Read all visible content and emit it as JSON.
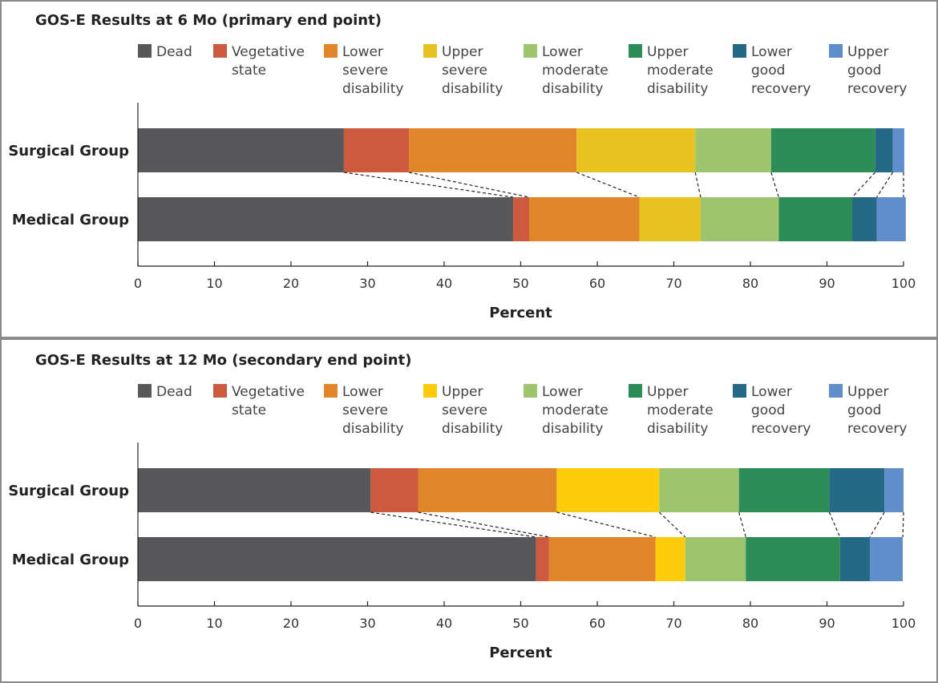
{
  "chart_data": [
    {
      "type": "bar",
      "orientation": "horizontal",
      "stacked": true,
      "title": "GOS-E Results at 6 Mo (primary end point)",
      "xlabel": "Percent",
      "xlim": [
        0,
        100
      ],
      "xticks": [
        "0",
        "10",
        "20",
        "30",
        "40",
        "50",
        "60",
        "70",
        "80",
        "90",
        "100"
      ],
      "categories": [
        "Surgical Group",
        "Medical Group"
      ],
      "legend_placement": "top",
      "series": [
        {
          "name": [
            "Dead"
          ],
          "color": "#58585a",
          "values": [
            26.9,
            49.0
          ]
        },
        {
          "name": [
            "Vegetative",
            "state"
          ],
          "color": "#cb5a3e",
          "values": [
            8.5,
            2.1
          ]
        },
        {
          "name": [
            "Lower",
            "severe",
            "disability"
          ],
          "color": "#e0862a",
          "values": [
            21.9,
            14.4
          ]
        },
        {
          "name": [
            "Upper",
            "severe",
            "disability"
          ],
          "color": "#e8c21e",
          "values": [
            15.5,
            8.0
          ]
        },
        {
          "name": [
            "Lower",
            "moderate",
            "disability"
          ],
          "color": "#9cc56d",
          "values": [
            9.9,
            10.2
          ]
        },
        {
          "name": [
            "Upper",
            "moderate",
            "disability"
          ],
          "color": "#2e8c56",
          "values": [
            13.6,
            9.6
          ]
        },
        {
          "name": [
            "Lower",
            "good",
            "recovery"
          ],
          "color": "#246a86",
          "values": [
            2.3,
            3.2
          ]
        },
        {
          "name": [
            "Upper",
            "good",
            "recovery"
          ],
          "color": "#5f8ecb",
          "values": [
            1.5,
            3.8
          ]
        }
      ]
    },
    {
      "type": "bar",
      "orientation": "horizontal",
      "stacked": true,
      "title": "GOS-E Results at 12 Mo (secondary end point)",
      "xlabel": "Percent",
      "xlim": [
        0,
        100
      ],
      "xticks": [
        "0",
        "10",
        "20",
        "30",
        "40",
        "50",
        "60",
        "70",
        "80",
        "90",
        "100"
      ],
      "categories": [
        "Surgical Group",
        "Medical Group"
      ],
      "legend_placement": "top",
      "series": [
        {
          "name": [
            "Dead"
          ],
          "color": "#58585a",
          "values": [
            30.4,
            52.0
          ]
        },
        {
          "name": [
            "Vegetative",
            "state"
          ],
          "color": "#cb5a3e",
          "values": [
            6.2,
            1.7
          ]
        },
        {
          "name": [
            "Lower",
            "severe",
            "disability"
          ],
          "color": "#e0862a",
          "values": [
            18.1,
            13.9
          ]
        },
        {
          "name": [
            "Upper",
            "severe",
            "disability"
          ],
          "color": "#fccc0d",
          "values": [
            13.4,
            3.9
          ]
        },
        {
          "name": [
            "Lower",
            "moderate",
            "disability"
          ],
          "color": "#9cc56d",
          "values": [
            10.4,
            7.9
          ]
        },
        {
          "name": [
            "Upper",
            "moderate",
            "disability"
          ],
          "color": "#2e8c56",
          "values": [
            11.8,
            12.3
          ]
        },
        {
          "name": [
            "Lower",
            "good",
            "recovery"
          ],
          "color": "#246a86",
          "values": [
            7.2,
            3.9
          ]
        },
        {
          "name": [
            "Upper",
            "good",
            "recovery"
          ],
          "color": "#5f8ecb",
          "values": [
            2.5,
            4.3
          ]
        }
      ]
    }
  ]
}
